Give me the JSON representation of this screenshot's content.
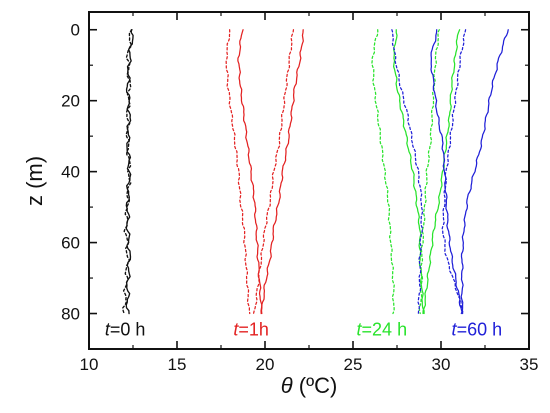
{
  "chart_data": {
    "type": "line",
    "xlabel": {
      "theta": "θ",
      "unit": " (ºC)"
    },
    "ylabel": "z (m)",
    "xlim": [
      10,
      35
    ],
    "ylim": [
      90,
      -5
    ],
    "xticks": [
      10,
      15,
      20,
      25,
      30,
      35
    ],
    "yticks": [
      0,
      20,
      40,
      60,
      80
    ],
    "grid": false,
    "legend": "none",
    "annotations": [
      {
        "var": "t",
        "text": "=0 h",
        "x": 10.9,
        "y": 86.2,
        "color": "#111111"
      },
      {
        "var": "t",
        "text": "=1h",
        "x": 18.2,
        "y": 86.2,
        "color": "#e32222"
      },
      {
        "var": "t",
        "text": "=24 h",
        "x": 25.2,
        "y": 86.2,
        "color": "#29e32c"
      },
      {
        "var": "t",
        "text": "=60 h",
        "x": 30.6,
        "y": 86.2,
        "color": "#2020d8"
      }
    ],
    "series": [
      {
        "color": "#111111",
        "style": "solid",
        "x": [
          12.5,
          12.3,
          12.2,
          12.3,
          12.2,
          12.3,
          12.2,
          12.2,
          12.3,
          12.2,
          12.2
        ],
        "y": [
          0,
          8,
          16,
          24,
          32,
          40,
          48,
          56,
          64,
          72,
          80
        ]
      },
      {
        "color": "#111111",
        "style": "dotted",
        "x": [
          12.4,
          12.2,
          12.3,
          12.2,
          12.2,
          12.3,
          12.2,
          12.1,
          12.2,
          12.1,
          12.0
        ],
        "y": [
          0,
          8,
          16,
          24,
          32,
          40,
          48,
          56,
          64,
          72,
          80
        ]
      },
      {
        "color": "#e32222",
        "style": "solid",
        "x": [
          18.7,
          18.5,
          18.6,
          18.8,
          19.0,
          19.2,
          19.4,
          19.5,
          19.6,
          19.7,
          19.8
        ],
        "y": [
          0,
          8,
          16,
          24,
          32,
          40,
          48,
          56,
          64,
          72,
          80
        ]
      },
      {
        "color": "#e32222",
        "style": "dotted",
        "x": [
          18.0,
          17.8,
          17.9,
          18.1,
          18.3,
          18.5,
          18.6,
          18.8,
          18.9,
          19.0,
          19.1
        ],
        "y": [
          0,
          8,
          16,
          24,
          32,
          40,
          48,
          56,
          64,
          72,
          80
        ]
      },
      {
        "color": "#e32222",
        "style": "solid",
        "x": [
          22.2,
          22.0,
          21.7,
          21.5,
          21.3,
          21.0,
          20.8,
          20.5,
          20.3,
          20.0,
          19.8
        ],
        "y": [
          0,
          8,
          16,
          24,
          32,
          40,
          48,
          56,
          64,
          72,
          80
        ]
      },
      {
        "color": "#e32222",
        "style": "dotted",
        "x": [
          21.6,
          21.4,
          21.2,
          21.0,
          20.8,
          20.5,
          20.3,
          20.0,
          19.8,
          19.6,
          19.4
        ],
        "y": [
          0,
          8,
          16,
          24,
          32,
          40,
          48,
          56,
          64,
          72,
          80
        ]
      },
      {
        "color": "#29e32c",
        "style": "dotted",
        "x": [
          26.4,
          26.1,
          26.2,
          26.4,
          26.6,
          26.8,
          27.0,
          27.1,
          27.2,
          27.3,
          27.3
        ],
        "y": [
          0,
          8,
          16,
          24,
          32,
          40,
          48,
          56,
          64,
          72,
          80
        ]
      },
      {
        "color": "#29e32c",
        "style": "solid",
        "x": [
          27.5,
          27.3,
          27.5,
          27.8,
          28.1,
          28.4,
          28.6,
          28.8,
          28.8,
          28.9,
          29.0
        ],
        "y": [
          0,
          8,
          16,
          24,
          32,
          40,
          48,
          56,
          64,
          72,
          80
        ]
      },
      {
        "color": "#29e32c",
        "style": "dotted",
        "x": [
          29.9,
          29.7,
          29.6,
          29.5,
          29.4,
          29.2,
          29.1,
          29.0,
          28.9,
          28.9,
          28.8
        ],
        "y": [
          0,
          8,
          16,
          24,
          32,
          40,
          48,
          56,
          64,
          72,
          80
        ]
      },
      {
        "color": "#29e32c",
        "style": "solid",
        "x": [
          31.0,
          30.8,
          30.6,
          30.5,
          30.3,
          30.1,
          29.9,
          29.6,
          29.4,
          29.2,
          29.0
        ],
        "y": [
          0,
          8,
          16,
          24,
          32,
          40,
          48,
          56,
          64,
          72,
          80
        ]
      },
      {
        "color": "#2020d8",
        "style": "dotted",
        "x": [
          27.2,
          27.4,
          27.7,
          28.1,
          28.4,
          28.7,
          28.9,
          28.9,
          28.8,
          28.8,
          28.7
        ],
        "y": [
          0,
          8,
          16,
          24,
          32,
          40,
          48,
          56,
          64,
          72,
          80
        ]
      },
      {
        "color": "#2020d8",
        "style": "solid",
        "x": [
          29.8,
          29.4,
          29.6,
          29.8,
          30.1,
          30.2,
          30.3,
          30.4,
          30.6,
          30.9,
          31.2
        ],
        "y": [
          0,
          8,
          16,
          24,
          32,
          40,
          48,
          56,
          64,
          72,
          80
        ]
      },
      {
        "color": "#2020d8",
        "style": "dotted",
        "x": [
          31.4,
          31.1,
          30.9,
          30.7,
          30.5,
          30.3,
          30.2,
          30.1,
          30.3,
          30.8,
          31.3
        ],
        "y": [
          0,
          8,
          16,
          24,
          32,
          40,
          48,
          56,
          64,
          72,
          80
        ]
      },
      {
        "color": "#2020d8",
        "style": "solid",
        "x": [
          33.8,
          33.3,
          32.9,
          32.6,
          32.3,
          31.9,
          31.5,
          31.3,
          31.2,
          31.2,
          31.2
        ],
        "y": [
          0,
          8,
          16,
          24,
          32,
          40,
          48,
          56,
          64,
          72,
          80
        ]
      }
    ]
  }
}
